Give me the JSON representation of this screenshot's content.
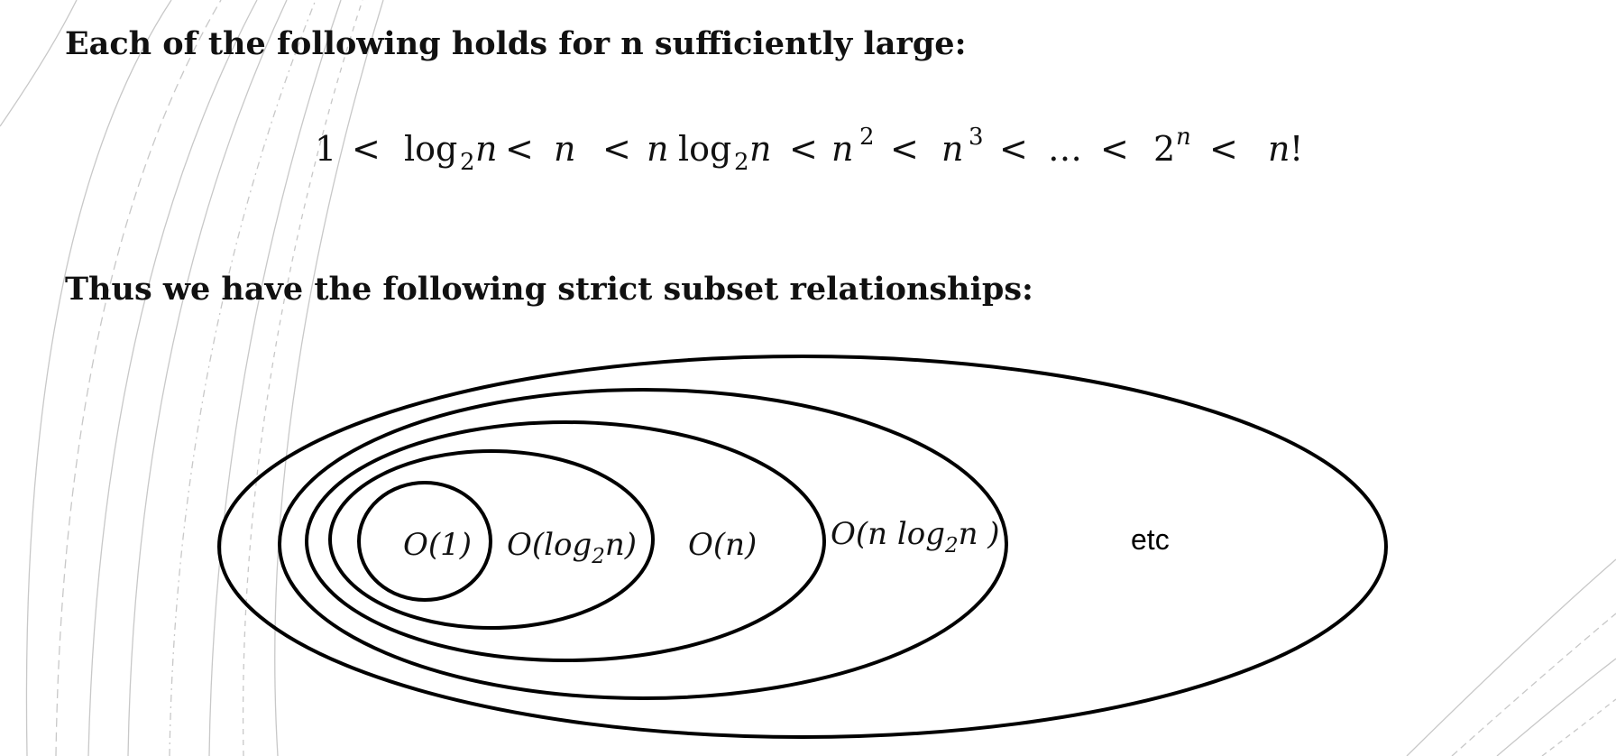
{
  "slide": {
    "heading_1": "Each of the following holds for  n sufficiently large:",
    "heading_2": "Thus we have the following strict subset relationships:"
  },
  "inequality": {
    "one": "1",
    "lt": "<",
    "log": "log",
    "two": "2",
    "n": "n",
    "ellipsis": "…",
    "three": "3",
    "bang": "!"
  },
  "diagram": {
    "sets": [
      {
        "name": "O(1)",
        "parts": {
          "prefix": "O(1)"
        }
      },
      {
        "name": "O(log2n)",
        "parts": {
          "prefix": "O(log",
          "sub": "2",
          "suffix": "n)"
        }
      },
      {
        "name": "O(n)",
        "parts": {
          "prefix": "O(n)"
        }
      },
      {
        "name": "O(n log2n )",
        "parts": {
          "prefix": "O(n log",
          "sub": "2",
          "suffix": "n )"
        }
      },
      {
        "name": "etc",
        "parts": {
          "prefix": "etc"
        }
      }
    ]
  },
  "colors": {
    "stroke": "#000000",
    "text": "#111111",
    "background_arcs": "#c8c8c8"
  }
}
